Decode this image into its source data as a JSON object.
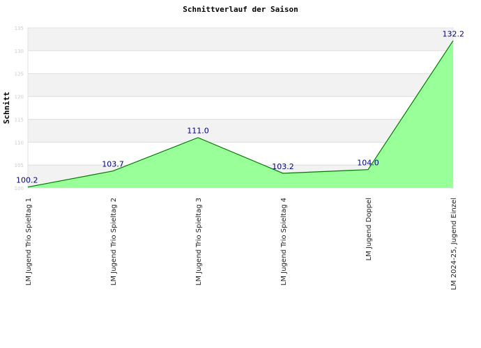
{
  "chart_data": {
    "type": "area",
    "title": "Schnittverlauf der Saison",
    "xlabel": "",
    "ylabel": "Schnitt",
    "categories": [
      "LM Jugend Trio Spieltag 1",
      "LM Jugend Trio Spieltag 2",
      "LM Jugend Trio Spieltag 3",
      "LM Jugend Trio Spieltag 4",
      "LM Jugend Doppel",
      "LM 2024-25, Jugend Einzel"
    ],
    "values": [
      100.2,
      103.7,
      111.0,
      103.2,
      104.0,
      132.2
    ],
    "value_labels": [
      "100.2",
      "103.7",
      "111.0",
      "103.2",
      "104.0",
      "132.2"
    ],
    "ylim": [
      100,
      135
    ],
    "yticks": [
      "100",
      "105",
      "110",
      "115",
      "120",
      "125",
      "130",
      "135"
    ],
    "grid": true,
    "legend": "none",
    "colors": {
      "fill": "#99ff99",
      "line": "#007700",
      "band": "#f2f2f2",
      "grid": "#dddddd",
      "value_label": "#000080"
    }
  }
}
